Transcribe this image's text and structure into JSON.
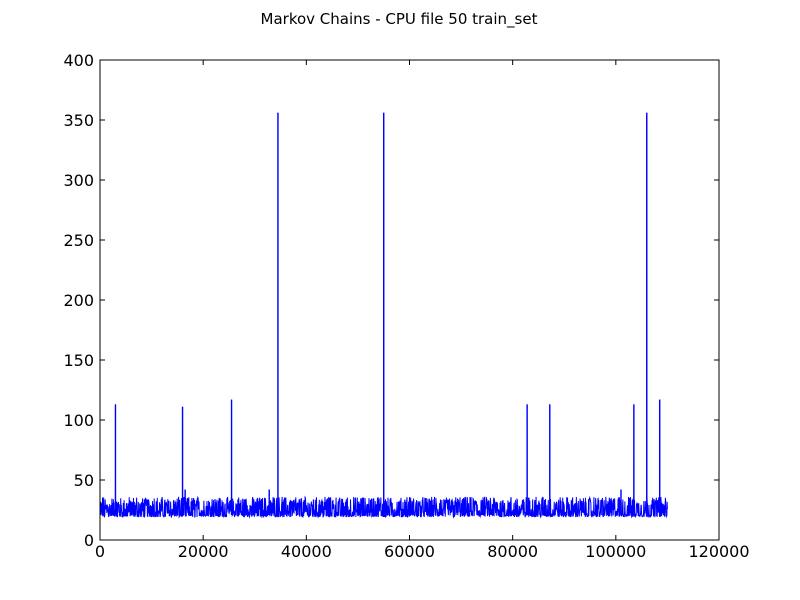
{
  "chart_data": {
    "type": "line",
    "title": "Markov Chains - CPU file 50 train_set",
    "xlabel": "",
    "ylabel": "",
    "xlim": [
      0,
      120000
    ],
    "ylim": [
      0,
      400
    ],
    "x_ticks": [
      0,
      20000,
      40000,
      60000,
      80000,
      100000,
      120000
    ],
    "x_tick_labels": [
      "0",
      "20000",
      "40000",
      "60000",
      "80000",
      "100000",
      "120000"
    ],
    "y_ticks": [
      0,
      50,
      100,
      150,
      200,
      250,
      300,
      350,
      400
    ],
    "y_tick_labels": [
      "0",
      "50",
      "100",
      "150",
      "200",
      "250",
      "300",
      "350",
      "400"
    ],
    "grid": false,
    "line_color": "#0000ff",
    "series": [
      {
        "x_range": [
          0,
          110000
        ],
        "baseline": {
          "min": 19,
          "max": 36
        },
        "spikes": [
          {
            "x": 3000,
            "y": 113
          },
          {
            "x": 16000,
            "y": 111
          },
          {
            "x": 16500,
            "y": 42
          },
          {
            "x": 25500,
            "y": 117
          },
          {
            "x": 32800,
            "y": 42
          },
          {
            "x": 34500,
            "y": 356
          },
          {
            "x": 55000,
            "y": 356
          },
          {
            "x": 82800,
            "y": 113
          },
          {
            "x": 87200,
            "y": 113
          },
          {
            "x": 101000,
            "y": 42
          },
          {
            "x": 103500,
            "y": 113
          },
          {
            "x": 106000,
            "y": 356
          },
          {
            "x": 108500,
            "y": 117
          }
        ]
      }
    ]
  }
}
